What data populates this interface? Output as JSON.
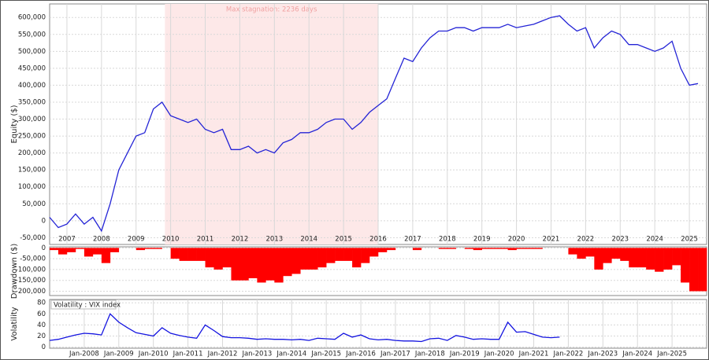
{
  "chart_data": [
    {
      "type": "line",
      "ylabel": "Equity ($)",
      "color": "#2424d6",
      "annotation": {
        "text": "Max stagnation: 2236 days",
        "span": [
          "2010-05",
          "2016-07"
        ]
      },
      "x": [
        "2007-01",
        "2007-04",
        "2007-07",
        "2007-10",
        "2008-01",
        "2008-04",
        "2008-07",
        "2008-10",
        "2009-01",
        "2009-04",
        "2009-07",
        "2009-10",
        "2010-01",
        "2010-04",
        "2010-07",
        "2010-10",
        "2011-01",
        "2011-04",
        "2011-07",
        "2011-10",
        "2012-01",
        "2012-04",
        "2012-07",
        "2012-10",
        "2013-01",
        "2013-04",
        "2013-07",
        "2013-10",
        "2014-01",
        "2014-04",
        "2014-07",
        "2014-10",
        "2015-01",
        "2015-04",
        "2015-07",
        "2015-10",
        "2016-01",
        "2016-04",
        "2016-07",
        "2016-10",
        "2017-01",
        "2017-04",
        "2017-07",
        "2017-10",
        "2018-01",
        "2018-04",
        "2018-07",
        "2018-10",
        "2019-01",
        "2019-04",
        "2019-07",
        "2019-10",
        "2020-01",
        "2020-04",
        "2020-07",
        "2020-10",
        "2021-01",
        "2021-04",
        "2021-07",
        "2021-10",
        "2022-01",
        "2022-04",
        "2022-07",
        "2022-10",
        "2023-01",
        "2023-04",
        "2023-07",
        "2023-10",
        "2024-01",
        "2024-04",
        "2024-07",
        "2024-10",
        "2025-01",
        "2025-04",
        "2025-07",
        "2025-10"
      ],
      "values": [
        10000,
        -20000,
        -10000,
        20000,
        -10000,
        10000,
        -30000,
        50000,
        150000,
        200000,
        250000,
        260000,
        330000,
        350000,
        310000,
        300000,
        290000,
        300000,
        270000,
        260000,
        270000,
        210000,
        210000,
        220000,
        200000,
        210000,
        200000,
        230000,
        240000,
        260000,
        260000,
        270000,
        290000,
        300000,
        300000,
        270000,
        290000,
        320000,
        340000,
        360000,
        420000,
        480000,
        470000,
        510000,
        540000,
        560000,
        560000,
        570000,
        570000,
        560000,
        570000,
        570000,
        570000,
        580000,
        570000,
        575000,
        580000,
        590000,
        600000,
        605000,
        580000,
        560000,
        570000,
        510000,
        540000,
        560000,
        550000,
        520000,
        520000,
        510000,
        500000,
        510000,
        530000,
        450000,
        400000,
        405000
      ],
      "xlim": [
        "2007-01",
        "2026-01"
      ],
      "xticks": [
        {
          "value": "2007-07",
          "label": "2007"
        },
        {
          "value": "2008-07",
          "label": "2008"
        },
        {
          "value": "2009-07",
          "label": "2009"
        },
        {
          "value": "2010-07",
          "label": "2010"
        },
        {
          "value": "2011-07",
          "label": "2011"
        },
        {
          "value": "2012-07",
          "label": "2012"
        },
        {
          "value": "2013-07",
          "label": "2013"
        },
        {
          "value": "2014-07",
          "label": "2014"
        },
        {
          "value": "2015-07",
          "label": "2015"
        },
        {
          "value": "2016-07",
          "label": "2016"
        },
        {
          "value": "2017-07",
          "label": "2017"
        },
        {
          "value": "2018-07",
          "label": "2018"
        },
        {
          "value": "2019-07",
          "label": "2019"
        },
        {
          "value": "2020-07",
          "label": "2020"
        },
        {
          "value": "2021-07",
          "label": "2021"
        },
        {
          "value": "2022-07",
          "label": "2022"
        },
        {
          "value": "2023-07",
          "label": "2023"
        },
        {
          "value": "2024-07",
          "label": "2024"
        },
        {
          "value": "2025-07",
          "label": "2025"
        }
      ],
      "ylim": [
        -70000,
        640000
      ],
      "yticks": [
        {
          "value": -50000,
          "label": "-50,000"
        },
        0,
        {
          "value": 50000,
          "label": "50,000"
        },
        {
          "value": 100000,
          "label": "100,000"
        },
        {
          "value": 150000,
          "label": "150,000"
        },
        {
          "value": 200000,
          "label": "200,000"
        },
        {
          "value": 250000,
          "label": "250,000"
        },
        {
          "value": 300000,
          "label": "300,000"
        },
        {
          "value": 350000,
          "label": "350,000"
        },
        {
          "value": 400000,
          "label": "400,000"
        },
        {
          "value": 450000,
          "label": "450,000"
        },
        {
          "value": 500000,
          "label": "500,000"
        },
        {
          "value": 550000,
          "label": "550,000"
        },
        {
          "value": 600000,
          "label": "600,000"
        }
      ],
      "grid": true
    },
    {
      "type": "bar",
      "ylabel": "Drawdown ($)",
      "color": "#ff0000",
      "x": [
        "2007-01",
        "2007-04",
        "2007-07",
        "2007-10",
        "2008-01",
        "2008-04",
        "2008-07",
        "2008-10",
        "2009-01",
        "2009-04",
        "2009-07",
        "2009-10",
        "2010-01",
        "2010-04",
        "2010-07",
        "2010-10",
        "2011-01",
        "2011-04",
        "2011-07",
        "2011-10",
        "2012-01",
        "2012-04",
        "2012-07",
        "2012-10",
        "2013-01",
        "2013-04",
        "2013-07",
        "2013-10",
        "2014-01",
        "2014-04",
        "2014-07",
        "2014-10",
        "2015-01",
        "2015-04",
        "2015-07",
        "2015-10",
        "2016-01",
        "2016-04",
        "2016-07",
        "2016-10",
        "2017-01",
        "2017-04",
        "2017-07",
        "2017-10",
        "2018-01",
        "2018-04",
        "2018-07",
        "2018-10",
        "2019-01",
        "2019-04",
        "2019-07",
        "2019-10",
        "2020-01",
        "2020-04",
        "2020-07",
        "2020-10",
        "2021-01",
        "2021-04",
        "2021-07",
        "2021-10",
        "2022-01",
        "2022-04",
        "2022-07",
        "2022-10",
        "2023-01",
        "2023-04",
        "2023-07",
        "2023-10",
        "2024-01",
        "2024-04",
        "2024-07",
        "2024-10",
        "2025-01",
        "2025-04",
        "2025-07",
        "2025-10"
      ],
      "values": [
        -10000,
        -30000,
        -20000,
        -5000,
        -40000,
        -30000,
        -70000,
        -20000,
        0,
        0,
        -10000,
        -5000,
        -5000,
        0,
        -50000,
        -60000,
        -60000,
        -60000,
        -90000,
        -100000,
        -90000,
        -150000,
        -150000,
        -140000,
        -160000,
        -150000,
        -160000,
        -130000,
        -120000,
        -100000,
        -100000,
        -90000,
        -70000,
        -60000,
        -60000,
        -90000,
        -70000,
        -40000,
        -20000,
        -10000,
        0,
        0,
        -10000,
        0,
        0,
        -5000,
        -5000,
        0,
        -5000,
        -10000,
        -5000,
        -5000,
        -5000,
        -10000,
        -5000,
        -5000,
        -5000,
        0,
        0,
        0,
        -30000,
        -50000,
        -40000,
        -100000,
        -70000,
        -50000,
        -60000,
        -90000,
        -90000,
        -100000,
        -110000,
        -100000,
        -80000,
        -160000,
        -200000,
        -200000
      ],
      "xlim": [
        "2007-01",
        "2026-01"
      ],
      "ylim": [
        -220000,
        5000
      ],
      "yticks": [
        {
          "value": -200000,
          "label": "-200,000"
        },
        {
          "value": -150000,
          "label": "-150,000"
        },
        {
          "value": -100000,
          "label": "-100,000"
        },
        {
          "value": -50000,
          "label": "-50,000"
        },
        0
      ],
      "grid": true
    },
    {
      "type": "line",
      "ylabel": "Volatility",
      "color": "#1414e0",
      "series_name": "Volatility : VIX index",
      "x": [
        "2007-01",
        "2007-04",
        "2007-07",
        "2007-10",
        "2008-01",
        "2008-04",
        "2008-07",
        "2008-10",
        "2009-01",
        "2009-04",
        "2009-07",
        "2009-10",
        "2010-01",
        "2010-04",
        "2010-07",
        "2010-10",
        "2011-01",
        "2011-04",
        "2011-07",
        "2011-10",
        "2012-01",
        "2012-04",
        "2012-07",
        "2012-10",
        "2013-01",
        "2013-04",
        "2013-07",
        "2013-10",
        "2014-01",
        "2014-04",
        "2014-07",
        "2014-10",
        "2015-01",
        "2015-04",
        "2015-07",
        "2015-10",
        "2016-01",
        "2016-04",
        "2016-07",
        "2016-10",
        "2017-01",
        "2017-04",
        "2017-07",
        "2017-10",
        "2018-01",
        "2018-04",
        "2018-07",
        "2018-10",
        "2019-01",
        "2019-04",
        "2019-07",
        "2019-10",
        "2020-01",
        "2020-04",
        "2020-07",
        "2020-10",
        "2021-01",
        "2021-04",
        "2021-07",
        "2021-10"
      ],
      "values": [
        12,
        14,
        18,
        22,
        25,
        24,
        22,
        60,
        45,
        35,
        26,
        23,
        20,
        35,
        25,
        21,
        18,
        16,
        40,
        30,
        19,
        17,
        17,
        16,
        14,
        15,
        14,
        14,
        13,
        14,
        12,
        16,
        15,
        14,
        25,
        18,
        22,
        15,
        13,
        14,
        12,
        11,
        11,
        10,
        15,
        16,
        12,
        21,
        18,
        14,
        15,
        14,
        14,
        45,
        27,
        28,
        23,
        18,
        17,
        18
      ],
      "xlim": [
        "2007-01",
        "2026-01"
      ],
      "xticks": [
        {
          "value": "2008-01",
          "label": "Jan-2008"
        },
        {
          "value": "2009-01",
          "label": "Jan-2009"
        },
        {
          "value": "2010-01",
          "label": "Jan-2010"
        },
        {
          "value": "2011-01",
          "label": "Jan-2011"
        },
        {
          "value": "2012-01",
          "label": "Jan-2012"
        },
        {
          "value": "2013-01",
          "label": "Jan-2013"
        },
        {
          "value": "2014-01",
          "label": "Jan-2014"
        },
        {
          "value": "2015-01",
          "label": "Jan-2015"
        },
        {
          "value": "2016-01",
          "label": "Jan-2016"
        },
        {
          "value": "2017-01",
          "label": "Jan-2017"
        },
        {
          "value": "2018-01",
          "label": "Jan-2018"
        },
        {
          "value": "2019-01",
          "label": "Jan-2019"
        },
        {
          "value": "2020-01",
          "label": "Jan-2020"
        },
        {
          "value": "2021-01",
          "label": "Jan-2021"
        },
        {
          "value": "2022-01",
          "label": "Jan-2022"
        },
        {
          "value": "2023-01",
          "label": "Jan-2023"
        },
        {
          "value": "2024-01",
          "label": "Jan-2024"
        },
        {
          "value": "2025-01",
          "label": "Jan-2025"
        }
      ],
      "ylim": [
        -2,
        86
      ],
      "yticks": [
        0,
        20,
        40,
        60,
        80
      ],
      "grid": true
    }
  ]
}
